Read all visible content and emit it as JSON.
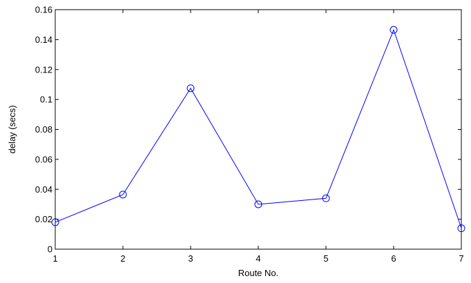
{
  "chart_data": {
    "type": "line",
    "title": "",
    "xlabel": "Route No.",
    "ylabel": "delay (secs)",
    "xlim": [
      1,
      7
    ],
    "ylim": [
      0,
      0.16
    ],
    "x_ticks": [
      "1",
      "2",
      "3",
      "4",
      "5",
      "6",
      "7"
    ],
    "y_ticks": [
      "0",
      "0.02",
      "0.04",
      "0.06",
      "0.08",
      "0.1",
      "0.12",
      "0.14",
      "0.16"
    ],
    "grid": false,
    "legend": "none",
    "series": [
      {
        "color": "#0000ff",
        "marker": "circle",
        "x": [
          1,
          2,
          3,
          4,
          5,
          6,
          7
        ],
        "y": [
          0.018,
          0.0365,
          0.1075,
          0.03,
          0.034,
          0.1465,
          0.014
        ]
      }
    ]
  }
}
